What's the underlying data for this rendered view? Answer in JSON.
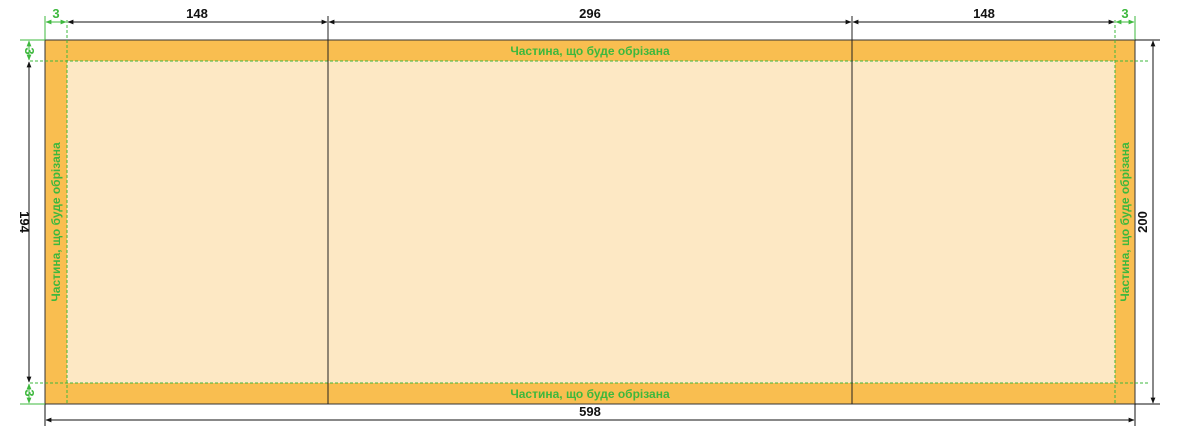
{
  "colors": {
    "bleed": "#f9be50",
    "paper": "#fde8c4",
    "trim_line": "#3db83d",
    "dimension_line": "#111111",
    "fold_line": "#222222"
  },
  "dimensions": {
    "bleed_left": "3",
    "panel_left": "148",
    "panel_center": "296",
    "panel_right": "148",
    "bleed_right": "3",
    "bleed_top": "3",
    "height_trimmed": "194",
    "bleed_bottom": "3",
    "height_full": "200",
    "width_full": "598"
  },
  "labels": {
    "trim_top": "Частина, що буде обрізана",
    "trim_bottom": "Частина, що буде обрізана",
    "trim_left": "Частина, що буде обрізана",
    "trim_right": "Частина, що буде обрізана"
  }
}
